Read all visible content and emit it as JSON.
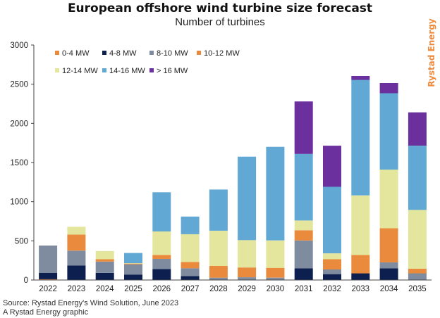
{
  "title": "European offshore wind turbine size forecast",
  "subtitle": "Number of turbines",
  "brand": "Rystad Energy",
  "source": "Source: Rystad Energy's Wind Solution, June 2023",
  "credit": "A Rystad Energy graphic",
  "chart_data": {
    "type": "bar",
    "stacked": true,
    "categories": [
      "2022",
      "2023",
      "2024",
      "2025",
      "2026",
      "2027",
      "2028",
      "2029",
      "2030",
      "2031",
      "2032",
      "2033",
      "2034",
      "2035"
    ],
    "ylim": [
      0,
      3000
    ],
    "yticks": [
      0,
      500,
      1000,
      1500,
      2000,
      2500,
      3000
    ],
    "grid": false,
    "legend_position": "top-left",
    "series": [
      {
        "name": "0-4 MW",
        "color": "#e98a3c",
        "values": [
          10,
          0,
          0,
          0,
          0,
          0,
          0,
          0,
          0,
          0,
          0,
          0,
          0,
          0
        ]
      },
      {
        "name": "4-8 MW",
        "color": "#0d1f4e",
        "values": [
          80,
          185,
          90,
          70,
          140,
          50,
          0,
          0,
          0,
          150,
          75,
          85,
          150,
          0
        ]
      },
      {
        "name": "8-10 MW",
        "color": "#7f8c9f",
        "values": [
          350,
          190,
          145,
          130,
          130,
          100,
          30,
          35,
          30,
          355,
          60,
          0,
          75,
          85
        ]
      },
      {
        "name": "10-12 MW",
        "color": "#e98a3c",
        "values": [
          0,
          205,
          30,
          10,
          50,
          80,
          150,
          125,
          125,
          130,
          130,
          235,
          435,
          60
        ]
      },
      {
        "name": "12-14 MW",
        "color": "#e3e69c",
        "values": [
          0,
          100,
          105,
          5,
          300,
          355,
          450,
          350,
          350,
          125,
          75,
          760,
          750,
          750
        ]
      },
      {
        "name": "14-16 MW",
        "color": "#62a8d4",
        "values": [
          0,
          0,
          0,
          130,
          500,
          225,
          525,
          1065,
          1195,
          850,
          850,
          1475,
          975,
          820
        ]
      },
      {
        "name": "> 16 MW",
        "color": "#6c2f9e",
        "values": [
          0,
          0,
          0,
          0,
          0,
          0,
          0,
          0,
          0,
          670,
          525,
          50,
          130,
          425
        ]
      }
    ]
  }
}
